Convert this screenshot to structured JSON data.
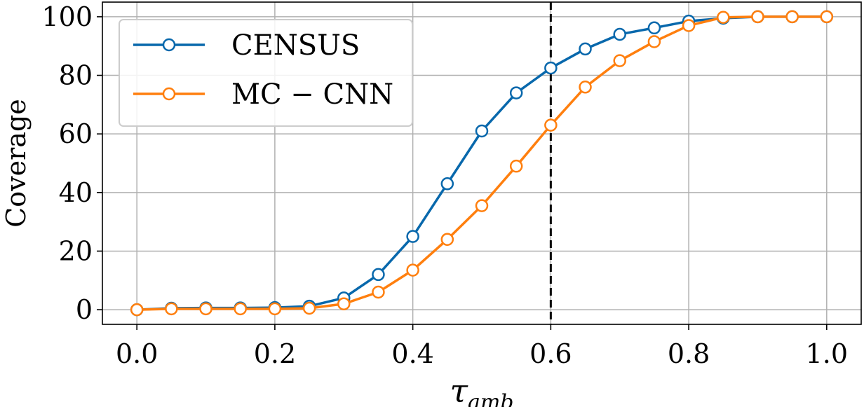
{
  "chart_data": {
    "type": "line",
    "xlabel": "τ",
    "xlabel_sub": "amb",
    "ylabel": "Coverage",
    "xlim": [
      -0.05,
      1.05
    ],
    "ylim": [
      -5,
      105
    ],
    "x_ticks": [
      0.0,
      0.2,
      0.4,
      0.6,
      0.8,
      1.0
    ],
    "x_tick_labels": [
      "0.0",
      "0.2",
      "0.4",
      "0.6",
      "0.8",
      "1.0"
    ],
    "y_ticks": [
      0,
      20,
      40,
      60,
      80,
      100
    ],
    "y_tick_labels": [
      "0",
      "20",
      "40",
      "60",
      "80",
      "100"
    ],
    "grid": true,
    "legend_position": "top-left",
    "vline": {
      "x": 0.6,
      "style": "dashed",
      "color": "#000000"
    },
    "x": [
      0.0,
      0.05,
      0.1,
      0.15,
      0.2,
      0.25,
      0.3,
      0.35,
      0.4,
      0.45,
      0.5,
      0.55,
      0.6,
      0.65,
      0.7,
      0.75,
      0.8,
      0.85,
      0.9,
      0.95,
      1.0
    ],
    "series": [
      {
        "name": "CENSUS",
        "color": "#0868ac",
        "values": [
          0,
          0.5,
          0.6,
          0.6,
          0.7,
          1.2,
          4,
          12,
          25,
          43,
          61,
          74,
          82.5,
          89,
          94,
          96.2,
          98.5,
          99.5,
          100,
          100,
          100
        ]
      },
      {
        "name": "MC − CNN",
        "color": "#ff7f0e",
        "values": [
          0,
          0.3,
          0.3,
          0.3,
          0.3,
          0.5,
          2,
          6,
          13.5,
          24,
          35.5,
          49,
          63,
          76,
          85,
          91.5,
          97,
          99.8,
          100,
          100,
          100
        ]
      }
    ]
  }
}
